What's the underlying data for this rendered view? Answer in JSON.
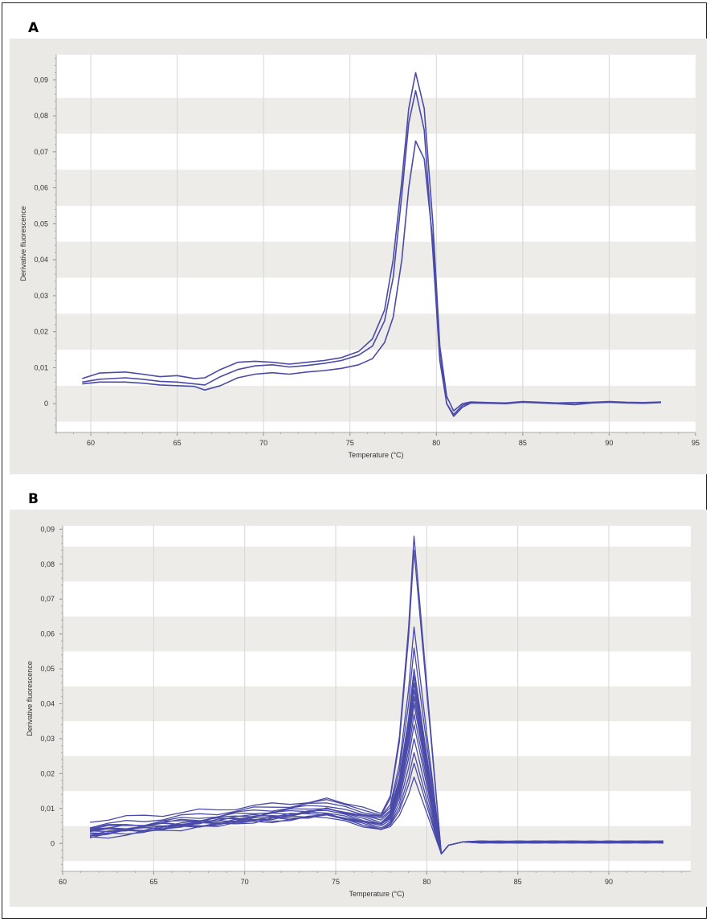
{
  "panels": [
    {
      "letter": "A"
    },
    {
      "letter": "B"
    }
  ],
  "colors": {
    "line": "#4a4aa8",
    "band_dark": "#eeece9",
    "band_light": "#ffffff",
    "outer_bg": "#ebe9e6",
    "grid": "#d6d6d6"
  },
  "chart_data": [
    {
      "type": "line",
      "xlabel": "Temperature (°C)",
      "ylabel": "Derivative fluorescence",
      "xlim": [
        58,
        95
      ],
      "ylim": [
        -0.008,
        0.097
      ],
      "xticks": [
        60,
        65,
        70,
        75,
        80,
        85,
        90,
        95
      ],
      "xtick_labels": [
        "60",
        "65",
        "70",
        "75",
        "80",
        "85",
        "90",
        "95"
      ],
      "yticks": [
        0,
        0.01,
        0.02,
        0.03,
        0.04,
        0.05,
        0.06,
        0.07,
        0.08,
        0.09
      ],
      "ytick_labels": [
        "0",
        "0,01",
        "0,02",
        "0,03",
        "0,04",
        "0,05",
        "0,06",
        "0,07",
        "0,08",
        "0,09"
      ],
      "grid": true,
      "series": [
        {
          "x": [
            59.5,
            60.5,
            62,
            63,
            64,
            65,
            66,
            66.6,
            67.5,
            68.5,
            69.5,
            70.5,
            71.5,
            72.5,
            73.5,
            74.5,
            75.5,
            76.3,
            77,
            77.5,
            78,
            78.4,
            78.8,
            79.3,
            79.8,
            80.2,
            80.6,
            81,
            81.5,
            82,
            83,
            84,
            85,
            86,
            87,
            88,
            89,
            90,
            91,
            92,
            93
          ],
          "y": [
            0.007,
            0.0085,
            0.0088,
            0.0082,
            0.0075,
            0.0078,
            0.007,
            0.0072,
            0.0095,
            0.0115,
            0.0118,
            0.0115,
            0.011,
            0.0115,
            0.012,
            0.0128,
            0.0145,
            0.018,
            0.026,
            0.04,
            0.062,
            0.082,
            0.092,
            0.082,
            0.05,
            0.016,
            0.002,
            -0.002,
            0,
            0.0005,
            0.0003,
            0.0002,
            0.0006,
            0.0004,
            0.0002,
            0.0003,
            0.0004,
            0.0006,
            0.0004,
            0.0003,
            0.0005
          ]
        },
        {
          "x": [
            59.5,
            60.5,
            62,
            63,
            64,
            65,
            66,
            66.6,
            67.5,
            68.5,
            69.5,
            70.5,
            71.5,
            72.5,
            73.5,
            74.5,
            75.5,
            76.3,
            77,
            77.5,
            78,
            78.4,
            78.8,
            79.3,
            79.8,
            80.2,
            80.6,
            81,
            81.5,
            82,
            83,
            84,
            85,
            86,
            87,
            88,
            89,
            90,
            91,
            92,
            93
          ],
          "y": [
            0.006,
            0.0068,
            0.0072,
            0.0068,
            0.0062,
            0.006,
            0.0055,
            0.0052,
            0.0075,
            0.0095,
            0.0105,
            0.0108,
            0.0102,
            0.0106,
            0.0112,
            0.012,
            0.0135,
            0.016,
            0.023,
            0.035,
            0.058,
            0.078,
            0.087,
            0.076,
            0.042,
            0.012,
            0.0,
            -0.003,
            -0.0005,
            0.0003,
            0.0002,
            0.0001,
            0.0005,
            0.0003,
            0.0001,
            -0.0002,
            0.0003,
            0.0005,
            0.0003,
            0.0002,
            0.0004
          ]
        },
        {
          "x": [
            59.5,
            60.5,
            62,
            63,
            64,
            65,
            66,
            66.6,
            67.5,
            68.5,
            69.5,
            70.5,
            71.5,
            72.5,
            73.5,
            74.5,
            75.5,
            76.3,
            77,
            77.5,
            78,
            78.4,
            78.8,
            79.3,
            79.8,
            80.2,
            80.6,
            81,
            81.5,
            82,
            83,
            84,
            85,
            86,
            87,
            88,
            89,
            90,
            91,
            92,
            93
          ],
          "y": [
            0.0055,
            0.006,
            0.006,
            0.0057,
            0.0052,
            0.005,
            0.0048,
            0.0038,
            0.005,
            0.0072,
            0.0082,
            0.0086,
            0.0082,
            0.0088,
            0.0092,
            0.0098,
            0.0108,
            0.0125,
            0.017,
            0.024,
            0.04,
            0.06,
            0.073,
            0.068,
            0.045,
            0.015,
            0.0,
            -0.0035,
            -0.001,
            0.0002,
            0.0001,
            0.0,
            0.0004,
            0.0002,
            0.0,
            -0.0003,
            0.0002,
            0.0004,
            0.0002,
            0.0001,
            0.0003
          ]
        }
      ]
    },
    {
      "type": "line",
      "xlabel": "Temperature (°C)",
      "ylabel": "Derivative fluorescence",
      "xlim": [
        60,
        94.5
      ],
      "ylim": [
        -0.008,
        0.091
      ],
      "xticks": [
        60,
        65,
        70,
        75,
        80,
        85,
        90
      ],
      "xtick_labels": [
        "60",
        "65",
        "70",
        "75",
        "80",
        "85",
        "90"
      ],
      "yticks": [
        0,
        0.01,
        0.02,
        0.03,
        0.04,
        0.05,
        0.06,
        0.07,
        0.08,
        0.09
      ],
      "ytick_labels": [
        "0",
        "0,01",
        "0,02",
        "0,03",
        "0,04",
        "0,05",
        "0,06",
        "0,07",
        "0,08",
        "0,09"
      ],
      "grid": true,
      "x": [
        61.5,
        62.5,
        63.5,
        64.5,
        65.5,
        66.5,
        67.5,
        68.5,
        69.5,
        70.5,
        71.5,
        72.5,
        73.5,
        74.5,
        75.5,
        76.5,
        77.5,
        78,
        78.5,
        79,
        79.3,
        79.6,
        80,
        80.4,
        80.8,
        81.2,
        82,
        83,
        84,
        85,
        86,
        87,
        88,
        89,
        90,
        91,
        92,
        93
      ],
      "peak_values": [
        0.088,
        0.084,
        0.062,
        0.056,
        0.05,
        0.048,
        0.046,
        0.044,
        0.042,
        0.04,
        0.037,
        0.034,
        0.03,
        0.026,
        0.023,
        0.019
      ],
      "base_start_values": [
        0.0065,
        0.005,
        0.004,
        0.0035,
        0.003,
        0.0028,
        0.0025,
        0.0022,
        0.0045,
        0.002,
        0.0038,
        0.0015,
        0.003,
        0.0042,
        0.0027,
        0.0033
      ],
      "shoulder_values": [
        0.0125,
        0.012,
        0.0115,
        0.011,
        0.0105,
        0.0102,
        0.0098,
        0.0095,
        0.0092,
        0.009,
        0.0088,
        0.0085,
        0.0082,
        0.008,
        0.0078,
        0.0075
      ]
    }
  ]
}
